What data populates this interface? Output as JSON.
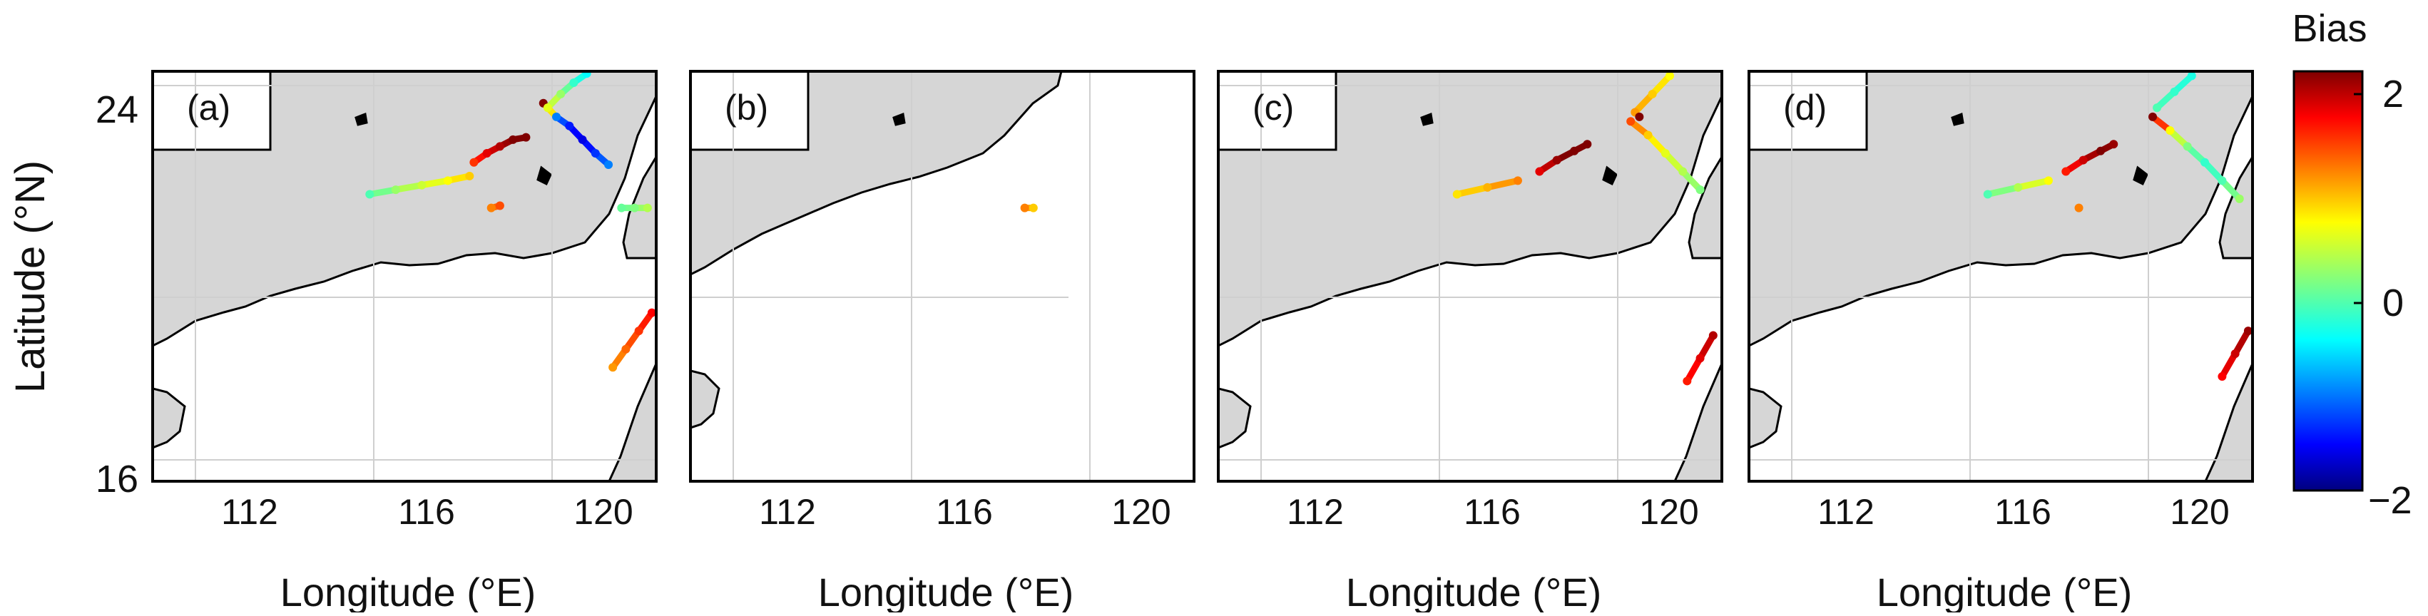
{
  "figure": {
    "ylabel": "Latitude (°N)",
    "xlabel": "Longitude (°E)",
    "colorbar": {
      "title": "Bias",
      "ticks": [
        "2",
        "0",
        "−2"
      ],
      "min": -2,
      "max": 2,
      "colormap": "jet"
    },
    "map_extent": {
      "lon": [
        110.0,
        121.6
      ],
      "lat": [
        16.0,
        25.0
      ]
    },
    "colors": {
      "land": "#d6d6d6",
      "coast": "#000000",
      "grid": "#cfcfcf"
    }
  },
  "chart_data": [
    {
      "type": "scatter",
      "panel_label": "(a)",
      "x_ticks": [
        "112",
        "116",
        "120"
      ],
      "y_ticks": [
        "24",
        "16"
      ],
      "series": [
        {
          "lon": [
            115.0,
            115.6,
            116.2,
            116.8,
            117.3
          ],
          "lat": [
            22.3,
            22.4,
            22.5,
            22.6,
            22.7
          ],
          "bias": [
            -0.2,
            0.1,
            0.3,
            0.5,
            0.7
          ]
        },
        {
          "lon": [
            117.4,
            117.7,
            118.0,
            118.3,
            118.6
          ],
          "lat": [
            23.0,
            23.2,
            23.35,
            23.5,
            23.55
          ],
          "bias": [
            1.3,
            1.6,
            1.8,
            2.0,
            2.1
          ]
        },
        {
          "lon": [
            119.0,
            119.3,
            119.6,
            119.9,
            120.2,
            120.5
          ],
          "lat": [
            24.3,
            24.0,
            23.8,
            23.5,
            23.2,
            22.95
          ],
          "bias": [
            2.2,
            -1.0,
            -1.4,
            -1.6,
            -1.3,
            -1.0
          ]
        },
        {
          "lon": [
            119.1,
            119.4,
            119.7,
            120.0
          ],
          "lat": [
            24.2,
            24.5,
            24.75,
            24.95
          ],
          "bias": [
            0.4,
            0.1,
            -0.3,
            -0.5
          ]
        },
        {
          "lon": [
            120.8,
            121.1,
            121.4
          ],
          "lat": [
            22.0,
            22.0,
            22.0
          ],
          "bias": [
            -0.1,
            0.0,
            0.2
          ]
        },
        {
          "lon": [
            117.8,
            118.0
          ],
          "lat": [
            22.0,
            22.05
          ],
          "bias": [
            1.0,
            1.2
          ]
        },
        {
          "lon": [
            120.6,
            120.9,
            121.2,
            121.5
          ],
          "lat": [
            18.5,
            18.9,
            19.3,
            19.7
          ],
          "bias": [
            0.9,
            1.1,
            1.3,
            1.5
          ]
        }
      ]
    },
    {
      "type": "scatter",
      "panel_label": "(b)",
      "x_ticks": [
        "112",
        "116",
        "120"
      ],
      "y_ticks": [],
      "series": [
        {
          "lon": [
            117.7,
            117.9
          ],
          "lat": [
            22.0,
            22.0
          ],
          "bias": [
            1.0,
            0.7
          ]
        }
      ]
    },
    {
      "type": "scatter",
      "panel_label": "(c)",
      "x_ticks": [
        "112",
        "116",
        "120"
      ],
      "y_ticks": [],
      "series": [
        {
          "lon": [
            115.5,
            116.2,
            116.9
          ],
          "lat": [
            22.3,
            22.45,
            22.6
          ],
          "bias": [
            0.6,
            0.8,
            1.0
          ]
        },
        {
          "lon": [
            117.4,
            117.8,
            118.2,
            118.5
          ],
          "lat": [
            22.8,
            23.05,
            23.25,
            23.4
          ],
          "bias": [
            1.6,
            1.9,
            2.1,
            2.0
          ]
        },
        {
          "lon": [
            119.5,
            119.9,
            120.3,
            120.7,
            121.1
          ],
          "lat": [
            23.9,
            23.6,
            23.2,
            22.8,
            22.4
          ],
          "bias": [
            1.2,
            0.7,
            0.4,
            0.2,
            0.0
          ]
        },
        {
          "lon": [
            119.6,
            120.0,
            120.4
          ],
          "lat": [
            24.1,
            24.5,
            24.9
          ],
          "bias": [
            0.9,
            0.7,
            0.5
          ]
        },
        {
          "lon": [
            119.7
          ],
          "lat": [
            24.0
          ],
          "bias": [
            2.2
          ]
        },
        {
          "lon": [
            120.8,
            121.1,
            121.4
          ],
          "lat": [
            18.2,
            18.7,
            19.2
          ],
          "bias": [
            1.4,
            1.6,
            1.8
          ]
        }
      ]
    },
    {
      "type": "scatter",
      "panel_label": "(d)",
      "x_ticks": [
        "112",
        "116",
        "120"
      ],
      "y_ticks": [],
      "series": [
        {
          "lon": [
            115.5,
            116.2,
            116.9
          ],
          "lat": [
            22.3,
            22.45,
            22.6
          ],
          "bias": [
            -0.2,
            0.2,
            0.5
          ]
        },
        {
          "lon": [
            117.3,
            117.7,
            118.1,
            118.4
          ],
          "lat": [
            22.8,
            23.05,
            23.25,
            23.4
          ],
          "bias": [
            1.4,
            1.7,
            2.0,
            1.9
          ]
        },
        {
          "lon": [
            119.3,
            119.7,
            120.1,
            120.5,
            120.9,
            121.3
          ],
          "lat": [
            24.0,
            23.7,
            23.35,
            23.0,
            22.6,
            22.2
          ],
          "bias": [
            2.1,
            0.5,
            0.0,
            -0.3,
            -0.2,
            0.1
          ]
        },
        {
          "lon": [
            119.4,
            119.8,
            120.2
          ],
          "lat": [
            24.2,
            24.55,
            24.9
          ],
          "bias": [
            -0.2,
            -0.3,
            -0.4
          ]
        },
        {
          "lon": [
            117.6
          ],
          "lat": [
            22.0
          ],
          "bias": [
            1.0
          ]
        },
        {
          "lon": [
            120.9,
            121.2,
            121.5
          ],
          "lat": [
            18.3,
            18.8,
            19.3
          ],
          "bias": [
            1.5,
            1.7,
            1.9
          ]
        }
      ]
    }
  ]
}
